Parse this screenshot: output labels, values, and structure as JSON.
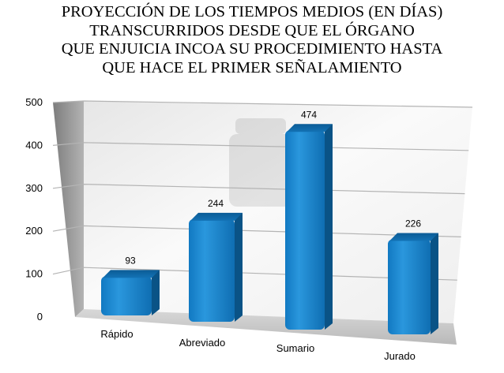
{
  "chart_data": {
    "type": "bar",
    "title_lines": [
      "PROYECCIÓN DE LOS TIEMPOS MEDIOS (EN DÍAS)",
      "TRANSCURRIDOS DESDE QUE EL ÓRGANO",
      "QUE ENJUICIA INCOA SU PROCEDIMIENTO HASTA",
      "QUE HACE EL PRIMER SEÑALAMIENTO"
    ],
    "categories": [
      "Rápido",
      "Abreviado",
      "Sumario",
      "Jurado"
    ],
    "values": [
      93,
      244,
      474,
      226
    ],
    "data_labels": [
      "93",
      "244",
      "474",
      "226"
    ],
    "y_ticks": [
      "0",
      "100",
      "200",
      "300",
      "400",
      "500"
    ],
    "ylim": [
      0,
      500
    ],
    "grid": true,
    "legend": "none",
    "three_d": true,
    "colors": {
      "bar_front": "#1a86cf",
      "bar_top": "#0b5f9a",
      "bar_side": "#0a5386",
      "wall_back": "#f3f3f3",
      "wall_side": "#8e8e8e",
      "floor": "#c9c9c9",
      "grid": "#b4b4b4"
    }
  }
}
